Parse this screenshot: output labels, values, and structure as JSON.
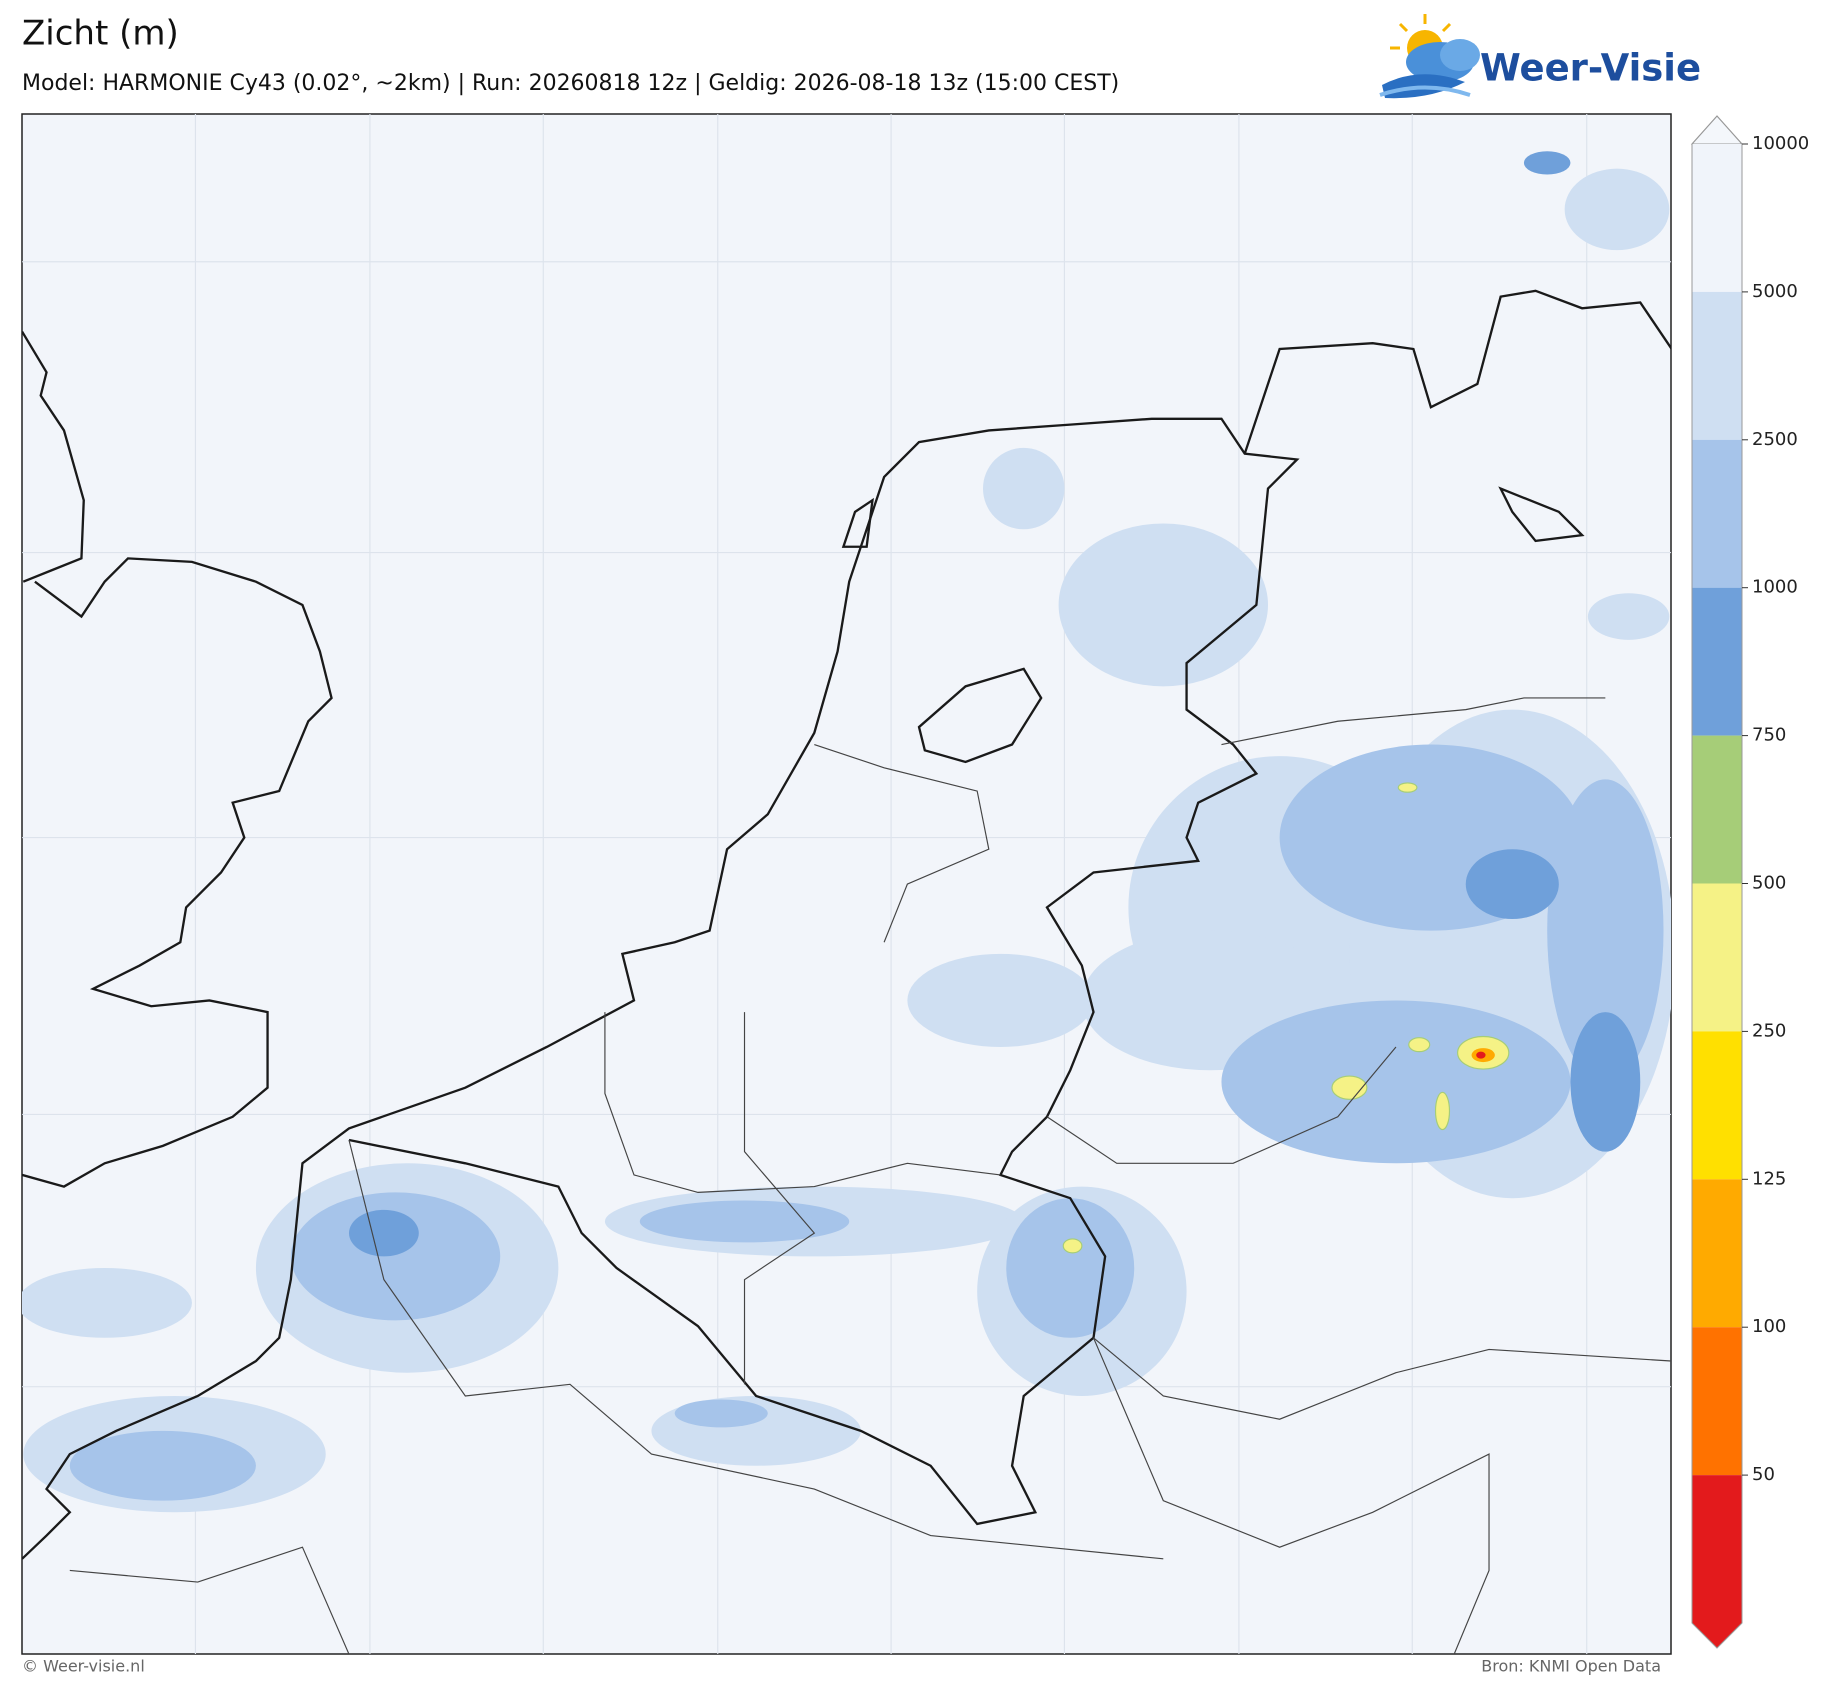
{
  "header": {
    "title": "Zicht (m)",
    "subtitle": "Model: HARMONIE Cy43 (0.02°, ~2km)  |  Run: 20260818 12z  |  Geldig: 2026-08-18 13z (15:00 CEST)"
  },
  "logo": {
    "text": "Weer-Visie"
  },
  "legend": {
    "levels": [
      10000,
      5000,
      2500,
      1000,
      750,
      500,
      250,
      125,
      100,
      50
    ],
    "colors": [
      "#f0f4fa",
      "#cfdff2",
      "#a6c4ea",
      "#6fa0da",
      "#a6cd78",
      "#f5f286",
      "#ffe000",
      "#ffaa00",
      "#ff7200",
      "#e31a1c"
    ],
    "over_color": "#f4f7fb"
  },
  "footer": {
    "left": "© Weer-visie.nl",
    "right": "Bron: KNMI Open Data"
  }
}
